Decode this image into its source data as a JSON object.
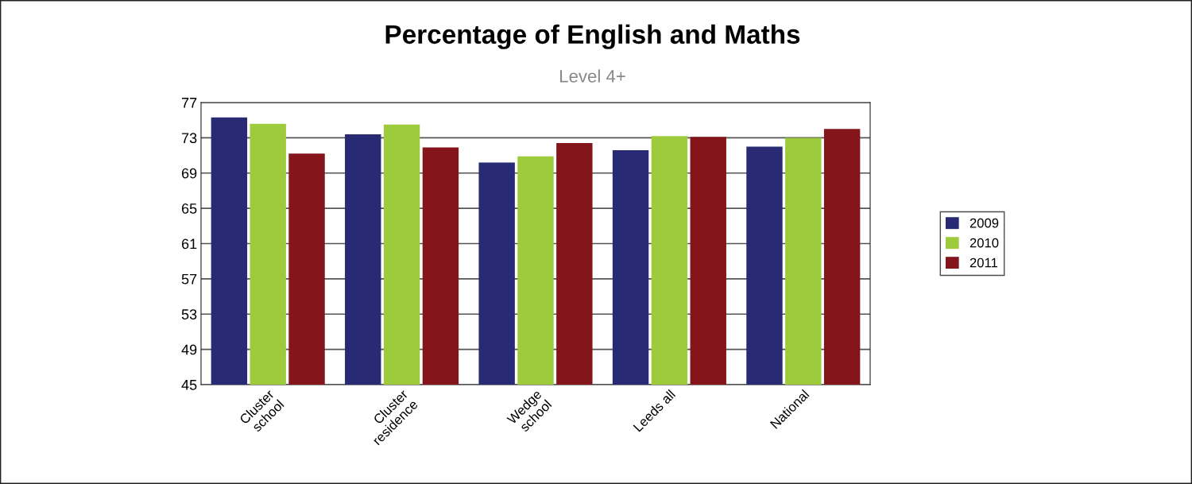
{
  "chart_data": {
    "type": "bar",
    "title": "Percentage of English and Maths",
    "subtitle": "Level 4+",
    "categories": [
      "Cluster\nschool",
      "Cluster\nresidence",
      "Wedge\nschool",
      "Leeds all",
      "National"
    ],
    "series": [
      {
        "name": "2009",
        "color": "#282a74",
        "values": [
          75.3,
          73.4,
          70.2,
          71.6,
          72.0
        ]
      },
      {
        "name": "2010",
        "color": "#9dcb3b",
        "values": [
          74.6,
          74.5,
          70.9,
          73.2,
          73.0
        ]
      },
      {
        "name": "2011",
        "color": "#84151a",
        "values": [
          71.2,
          71.9,
          72.4,
          73.1,
          74.0
        ]
      }
    ],
    "ylim": [
      45,
      77
    ],
    "yticks": [
      45,
      49,
      53,
      57,
      61,
      65,
      69,
      73,
      77
    ],
    "grid": "y",
    "legend": "right"
  }
}
